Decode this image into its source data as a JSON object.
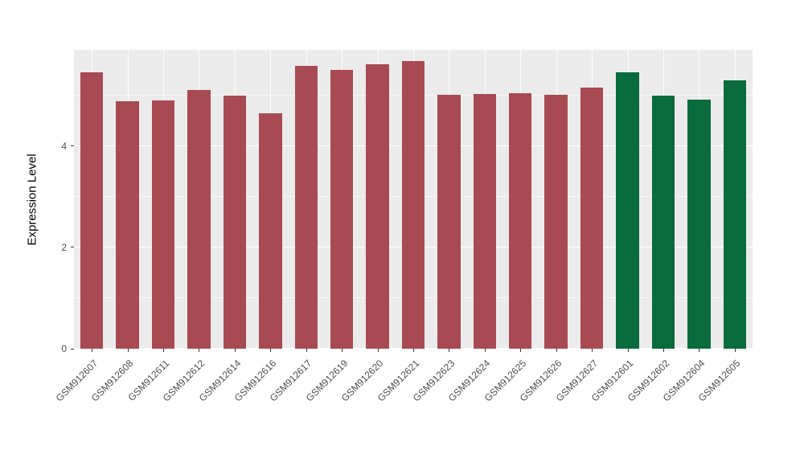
{
  "chart_data": {
    "type": "bar",
    "title": "",
    "xlabel": "",
    "ylabel": "Expression Level",
    "ylim": [
      0,
      5.9
    ],
    "yticks": [
      0,
      2,
      4
    ],
    "minor_gridlines": [
      1,
      3,
      5
    ],
    "legend": "none",
    "panel_background": "#EBEBEB",
    "gridline_color": "#FFFFFF",
    "axis_text_color": "#4D4D4D",
    "group_colors": {
      "group1": "#A84A52",
      "group2": "#0A6B3C"
    },
    "categories": [
      "GSM912607",
      "GSM912608",
      "GSM912611",
      "GSM912612",
      "GSM912614",
      "GSM912616",
      "GSM912617",
      "GSM912619",
      "GSM912620",
      "GSM912621",
      "GSM912623",
      "GSM912624",
      "GSM912625",
      "GSM912626",
      "GSM912627",
      "GSM912601",
      "GSM912602",
      "GSM912604",
      "GSM912605"
    ],
    "values": [
      5.45,
      4.88,
      4.9,
      5.1,
      5.0,
      4.65,
      5.58,
      5.5,
      5.62,
      5.68,
      5.02,
      5.03,
      5.05,
      5.02,
      5.15,
      5.45,
      5.0,
      4.92,
      5.3
    ],
    "colors": [
      "#A84A52",
      "#A84A52",
      "#A84A52",
      "#A84A52",
      "#A84A52",
      "#A84A52",
      "#A84A52",
      "#A84A52",
      "#A84A52",
      "#A84A52",
      "#A84A52",
      "#A84A52",
      "#A84A52",
      "#A84A52",
      "#A84A52",
      "#0A6B3C",
      "#0A6B3C",
      "#0A6B3C",
      "#0A6B3C"
    ]
  }
}
